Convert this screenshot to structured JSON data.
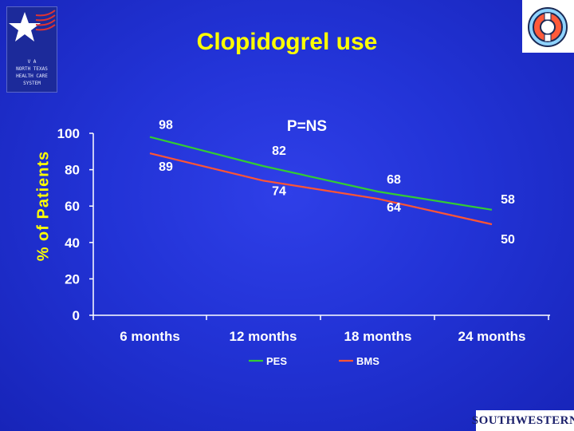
{
  "header": {
    "va_logo_text": "V A\nNORTH TEXAS\nHEALTH CARE\nSYSTEM",
    "southwestern_logo_text": "SOUTHWESTERN"
  },
  "chart_data": {
    "type": "line",
    "title": "Clopidogrel use",
    "annotation": "P=NS",
    "xlabel": "",
    "ylabel": "% of Patients",
    "categories": [
      "6 months",
      "12 months",
      "18 months",
      "24 months"
    ],
    "ylim": [
      0,
      100
    ],
    "yticks": [
      "0",
      "20",
      "40",
      "60",
      "80",
      "100"
    ],
    "legend_placement": "bottom",
    "grid": false,
    "series": [
      {
        "name": "PES",
        "values": [
          98,
          82,
          68,
          58
        ],
        "color": "#33cc33"
      },
      {
        "name": "BMS",
        "values": [
          89,
          74,
          64,
          50
        ],
        "color": "#ff5533"
      }
    ]
  },
  "colors": {
    "background": "#2233d6",
    "title": "#ffff00",
    "text": "#ffffff",
    "axis": "#ffffff"
  }
}
